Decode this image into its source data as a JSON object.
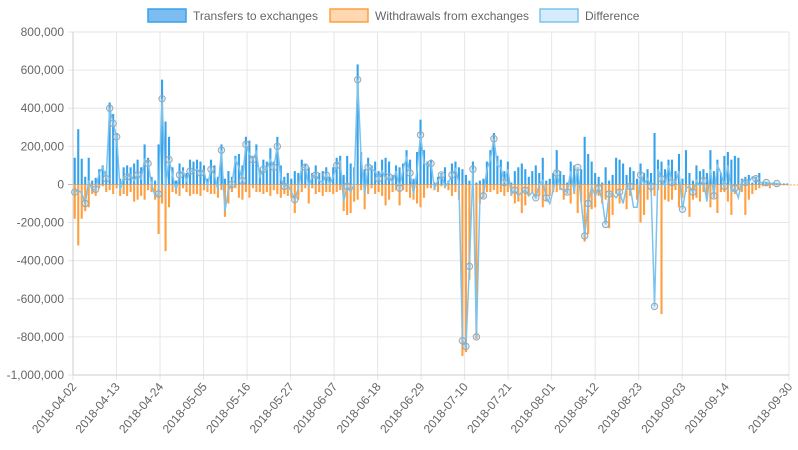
{
  "chart_data": {
    "type": "bar",
    "x_axis": {
      "tick_labels": [
        "2018-04-02",
        "2018-04-13",
        "2018-04-24",
        "2018-05-05",
        "2018-05-16",
        "2018-05-27",
        "2018-06-07",
        "2018-06-18",
        "2018-06-29",
        "2018-07-10",
        "2018-07-21",
        "2018-08-01",
        "2018-08-12",
        "2018-08-23",
        "2018-09-03",
        "2018-09-14",
        "2018-09-30"
      ],
      "start_date": "2018-04-02",
      "end_date": "2018-09-30"
    },
    "y_axis": {
      "ylim": [
        -1000000,
        800000
      ],
      "tick_values": [
        800000,
        600000,
        400000,
        200000,
        0,
        -200000,
        -400000,
        -600000,
        -800000,
        -1000000
      ],
      "tick_labels": [
        "800,000",
        "600,000",
        "400,000",
        "200,000",
        "0",
        "-200,000",
        "-400,000",
        "-600,000",
        "-800,000",
        "-1,000,000"
      ]
    },
    "grid": true,
    "legend_position": "top-center",
    "series": [
      {
        "name": "Transfers to exchanges",
        "kind": "bar",
        "color": "#36a2eb",
        "values": [
          140000,
          290000,
          135000,
          40000,
          140000,
          20000,
          35000,
          80000,
          100000,
          70000,
          430000,
          370000,
          270000,
          30000,
          90000,
          100000,
          90000,
          110000,
          130000,
          90000,
          210000,
          140000,
          40000,
          20000,
          210000,
          550000,
          330000,
          250000,
          90000,
          20000,
          110000,
          90000,
          60000,
          130000,
          120000,
          130000,
          120000,
          100000,
          30000,
          130000,
          100000,
          40000,
          210000,
          30000,
          70000,
          40000,
          150000,
          160000,
          100000,
          250000,
          230000,
          150000,
          210000,
          80000,
          130000,
          120000,
          190000,
          120000,
          250000,
          100000,
          40000,
          60000,
          30000,
          70000,
          60000,
          130000,
          110000,
          90000,
          60000,
          100000,
          60000,
          70000,
          90000,
          40000,
          90000,
          140000,
          150000,
          50000,
          150000,
          110000,
          90000,
          630000,
          170000,
          80000,
          140000,
          100000,
          120000,
          70000,
          130000,
          140000,
          120000,
          50000,
          100000,
          90000,
          110000,
          180000,
          130000,
          30000,
          170000,
          340000,
          180000,
          120000,
          130000,
          10000,
          40000,
          60000,
          90000,
          20000,
          110000,
          120000,
          90000,
          80000,
          50000,
          20000,
          120000,
          10000,
          20000,
          30000,
          120000,
          180000,
          270000,
          150000,
          130000,
          70000,
          120000,
          10000,
          70000,
          90000,
          110000,
          80000,
          40000,
          70000,
          100000,
          60000,
          140000,
          20000,
          30000,
          60000,
          180000,
          70000,
          50000,
          10000,
          120000,
          100000,
          60000,
          80000,
          250000,
          160000,
          120000,
          60000,
          40000,
          10000,
          90000,
          20000,
          50000,
          140000,
          130000,
          110000,
          50000,
          90000,
          70000,
          30000,
          110000,
          60000,
          80000,
          60000,
          270000,
          130000,
          120000,
          80000,
          130000,
          130000,
          70000,
          160000,
          30000,
          180000,
          60000,
          20000,
          100000,
          70000,
          80000,
          60000,
          180000,
          70000,
          130000,
          60000,
          150000,
          170000,
          130000,
          150000,
          140000,
          30000,
          40000,
          50000,
          10000,
          40000,
          60000,
          10000,
          10000,
          10000,
          10000,
          5000,
          5000,
          5000,
          5000
        ]
      },
      {
        "name": "Withdrawals from exchanges",
        "kind": "bar",
        "color": "#ff9f40",
        "values": [
          -180000,
          -320000,
          -180000,
          -140000,
          -120000,
          -50000,
          -60000,
          -20000,
          -10000,
          -40000,
          -30000,
          -50000,
          -20000,
          -60000,
          -50000,
          -60000,
          -40000,
          -90000,
          -80000,
          -60000,
          -80000,
          -30000,
          -40000,
          -80000,
          -260000,
          -100000,
          -350000,
          -120000,
          -40000,
          -50000,
          -60000,
          -20000,
          -40000,
          -60000,
          -50000,
          -50000,
          -60000,
          -30000,
          -40000,
          -50000,
          -50000,
          -70000,
          -30000,
          -170000,
          -100000,
          -40000,
          -20000,
          -70000,
          -80000,
          -40000,
          -70000,
          -20000,
          -40000,
          -40000,
          -50000,
          -40000,
          -60000,
          -30000,
          -50000,
          -70000,
          -50000,
          -60000,
          -70000,
          -150000,
          -80000,
          -40000,
          -20000,
          -100000,
          -20000,
          -50000,
          -40000,
          -60000,
          -40000,
          -40000,
          -50000,
          -40000,
          -30000,
          -140000,
          -160000,
          -150000,
          -90000,
          -80000,
          -30000,
          -130000,
          -50000,
          -20000,
          -50000,
          -40000,
          -60000,
          -110000,
          -80000,
          -40000,
          -30000,
          -110000,
          -30000,
          -40000,
          -70000,
          -80000,
          -100000,
          -120000,
          -70000,
          -20000,
          -20000,
          -30000,
          -40000,
          -10000,
          -20000,
          -30000,
          -60000,
          -40000,
          -80000,
          -900000,
          -880000,
          -500000,
          -40000,
          -810000,
          -100000,
          -70000,
          -40000,
          -40000,
          -30000,
          -50000,
          -40000,
          -60000,
          -40000,
          -60000,
          -100000,
          -90000,
          -150000,
          -110000,
          -60000,
          -40000,
          -70000,
          -60000,
          -120000,
          -90000,
          -60000,
          -40000,
          -40000,
          -30000,
          -80000,
          -50000,
          -100000,
          -50000,
          -150000,
          -90000,
          -300000,
          -260000,
          -130000,
          -120000,
          -60000,
          -100000,
          -80000,
          -230000,
          -160000,
          -50000,
          -100000,
          -30000,
          -130000,
          -60000,
          -30000,
          -80000,
          -200000,
          -160000,
          -80000,
          -40000,
          -60000,
          -30000,
          -680000,
          -80000,
          -90000,
          -80000,
          -30000,
          -120000,
          -70000,
          -40000,
          -170000,
          -80000,
          -70000,
          -90000,
          -40000,
          -60000,
          -120000,
          -70000,
          -150000,
          -40000,
          -40000,
          -90000,
          -160000,
          -50000,
          -30000,
          -40000,
          -160000,
          -80000,
          -50000,
          -30000,
          -20000,
          -10000,
          -10000,
          -20000,
          -5000,
          -5000,
          -5000,
          -5000,
          -5000,
          -5000,
          -5000,
          -5000
        ]
      },
      {
        "name": "Difference",
        "kind": "line",
        "color": "#7cc3ee",
        "values": [
          -40000,
          -30000,
          -45000,
          -100000,
          20000,
          -30000,
          -25000,
          60000,
          90000,
          30000,
          400000,
          320000,
          250000,
          -30000,
          40000,
          40000,
          50000,
          20000,
          50000,
          30000,
          130000,
          110000,
          0,
          -60000,
          -50000,
          450000,
          -20000,
          130000,
          50000,
          -30000,
          50000,
          70000,
          20000,
          70000,
          70000,
          80000,
          60000,
          70000,
          -10000,
          80000,
          50000,
          -30000,
          180000,
          -140000,
          -30000,
          0,
          130000,
          90000,
          20000,
          210000,
          160000,
          130000,
          170000,
          40000,
          80000,
          80000,
          130000,
          90000,
          200000,
          30000,
          -10000,
          0,
          -40000,
          -80000,
          -20000,
          90000,
          90000,
          -10000,
          40000,
          50000,
          20000,
          10000,
          50000,
          0,
          40000,
          100000,
          120000,
          -90000,
          -10000,
          -40000,
          0,
          550000,
          140000,
          -50000,
          90000,
          80000,
          70000,
          30000,
          70000,
          30000,
          40000,
          10000,
          70000,
          -20000,
          80000,
          140000,
          60000,
          -50000,
          70000,
          260000,
          110000,
          100000,
          110000,
          -20000,
          20000,
          50000,
          -10000,
          10000,
          50000,
          80000,
          10000,
          -820000,
          -850000,
          -430000,
          80000,
          -800000,
          -80000,
          -60000,
          80000,
          130000,
          240000,
          100000,
          90000,
          10000,
          80000,
          -50000,
          -30000,
          -60000,
          -40000,
          -30000,
          -60000,
          -40000,
          -70000,
          0,
          20000,
          -70000,
          -100000,
          -30000,
          60000,
          -20000,
          -30000,
          -40000,
          70000,
          -40000,
          90000,
          -90000,
          -270000,
          -100000,
          -10000,
          -60000,
          -20000,
          -80000,
          -210000,
          -50000,
          -50000,
          -70000,
          -40000,
          -100000,
          -10000,
          -10000,
          -120000,
          -120000,
          50000,
          0,
          30000,
          -10000,
          -640000,
          80000,
          30000,
          -10000,
          100000,
          10000,
          10000,
          70000,
          -130000,
          -20000,
          -10000,
          -40000,
          20000,
          -10000,
          20000,
          -90000,
          80000,
          -60000,
          100000,
          60000,
          -10000,
          100000,
          -40000,
          -20000,
          -70000,
          20000,
          10000,
          10000,
          40000,
          30000,
          10000,
          10000,
          10000,
          5000,
          5000,
          5000,
          0
        ]
      }
    ]
  }
}
